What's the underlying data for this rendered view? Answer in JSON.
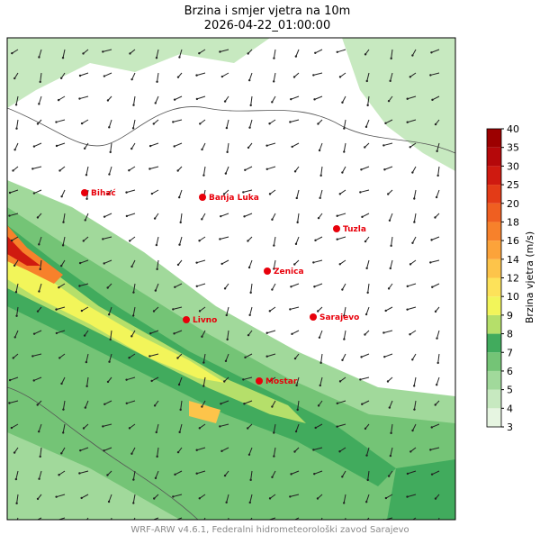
{
  "header": {
    "title": "Brzina i smjer vjetra na 10m",
    "subtitle": "2026-04-22_01:00:00"
  },
  "cities": [
    {
      "name": "Bihać"
    },
    {
      "name": "Banja Luka"
    },
    {
      "name": "Tuzla"
    },
    {
      "name": "Zenica"
    },
    {
      "name": "Livno"
    },
    {
      "name": "Sarajevo"
    },
    {
      "name": "Mostar"
    }
  ],
  "city_color": "#e8000b",
  "colorbar": {
    "label": "Brzina vjetra (m/s)",
    "levels": [
      3,
      4,
      5,
      6,
      7,
      8,
      9,
      10,
      12,
      14,
      16,
      18,
      20,
      25,
      30,
      35,
      40
    ],
    "colors": [
      "#e6f5e1",
      "#c7e9c0",
      "#a1d99b",
      "#74c476",
      "#41ab5d",
      "#b5df6a",
      "#f2f55a",
      "#fde25a",
      "#fdc44a",
      "#fca33a",
      "#f7812b",
      "#ef5f21",
      "#e33b17",
      "#cf1a10",
      "#b5080a",
      "#9c0000"
    ]
  },
  "footer": "WRF-ARW v4.6.1, Federalni hidrometeorološki zavod Sarajevo"
}
